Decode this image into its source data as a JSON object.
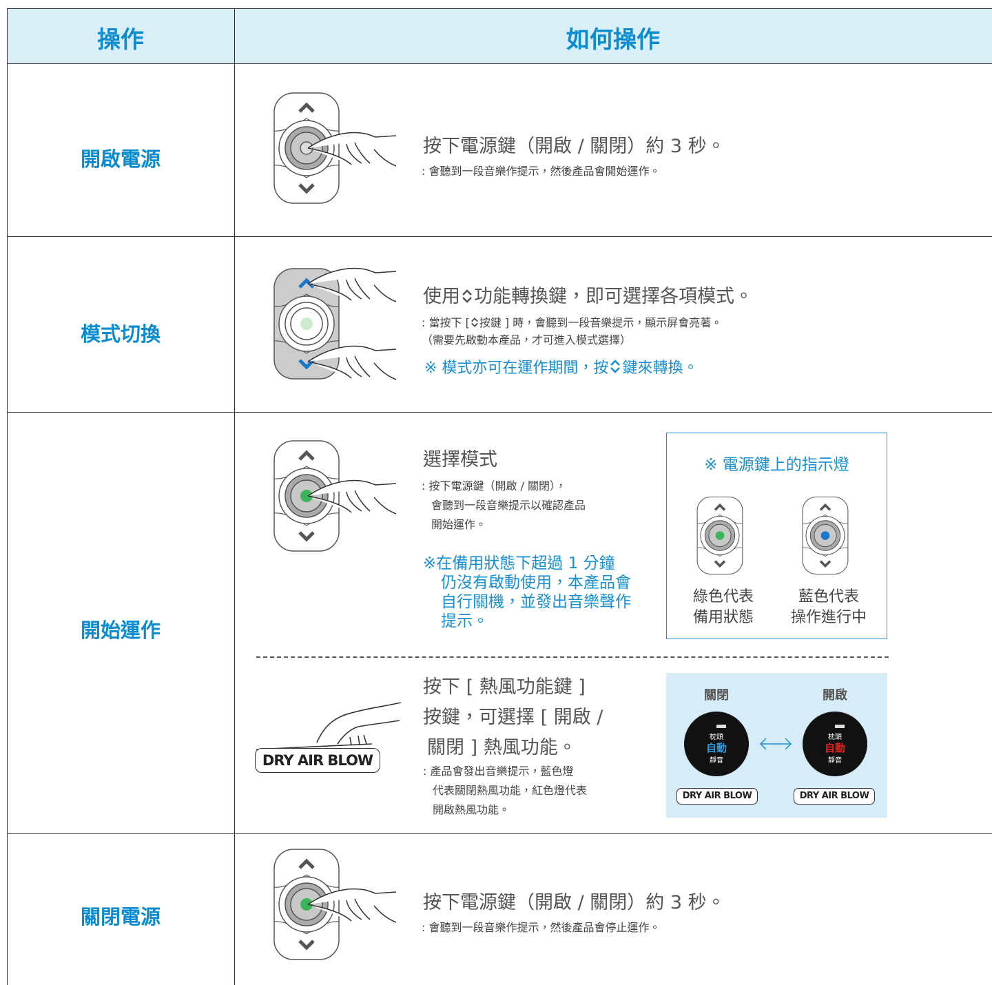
{
  "header": {
    "operation": "操作",
    "how": "如何操作"
  },
  "rows": [
    {
      "label": "開啟電源",
      "instruction": "按下電源鍵（開啟 / 關閉）約 3 秒。",
      "note": ": 會聽到一段音樂作提示，然後產品會開始運作。"
    },
    {
      "label": "模式切換",
      "instruction": [
        "使用",
        "功能轉換鍵，即可選擇各項模式。"
      ],
      "detail": [
        ": 當按下 [",
        "按鍵 ] 時，會聽到一段音樂提示，顯示屏會亮著。"
      ],
      "detail2": "（需要先啟動本產品，才可進入模式選擇）",
      "tip": [
        "※ 模式亦可在運作期間，按",
        "鍵來轉換。"
      ]
    },
    {
      "label": "開始運作",
      "select": {
        "title": "選擇模式",
        "lines": [
          ": 按下電源鍵（開啟 / 關閉），",
          "會聽到一段音樂提示以確認產品",
          "開始運作。"
        ],
        "warning": [
          "※在備用狀態下超過 1 分鐘",
          "仍沒有啟動使用，本產品會",
          "自行關機，並發出音樂聲作",
          "提示。"
        ]
      },
      "indicator": {
        "title": "※ 電源鍵上的指示燈",
        "green": [
          "綠色代表",
          "備用狀態"
        ],
        "blue": [
          "藍色代表",
          "操作進行中"
        ]
      },
      "dry_air": {
        "lines": [
          "按下 [ 熱風功能鍵 ]",
          "按鍵，可選擇 [ 開啟 /",
          "關閉 ] 熱風功能。"
        ],
        "notes": [
          ": 產品會發出音樂提示，藍色燈",
          "代表關閉熱風功能，紅色燈代表",
          "開啟熱風功能。"
        ],
        "button": "DRY AIR BLOW",
        "off": "關閉",
        "on": "開啟",
        "display": [
          "枕頭",
          "自動",
          "靜音"
        ]
      }
    },
    {
      "label": "關閉電源",
      "instruction": "按下電源鍵（開啟 / 關閉）約 3 秒。",
      "note": ": 會聽到一段音樂作提示，然後產品會停止運作。"
    }
  ]
}
